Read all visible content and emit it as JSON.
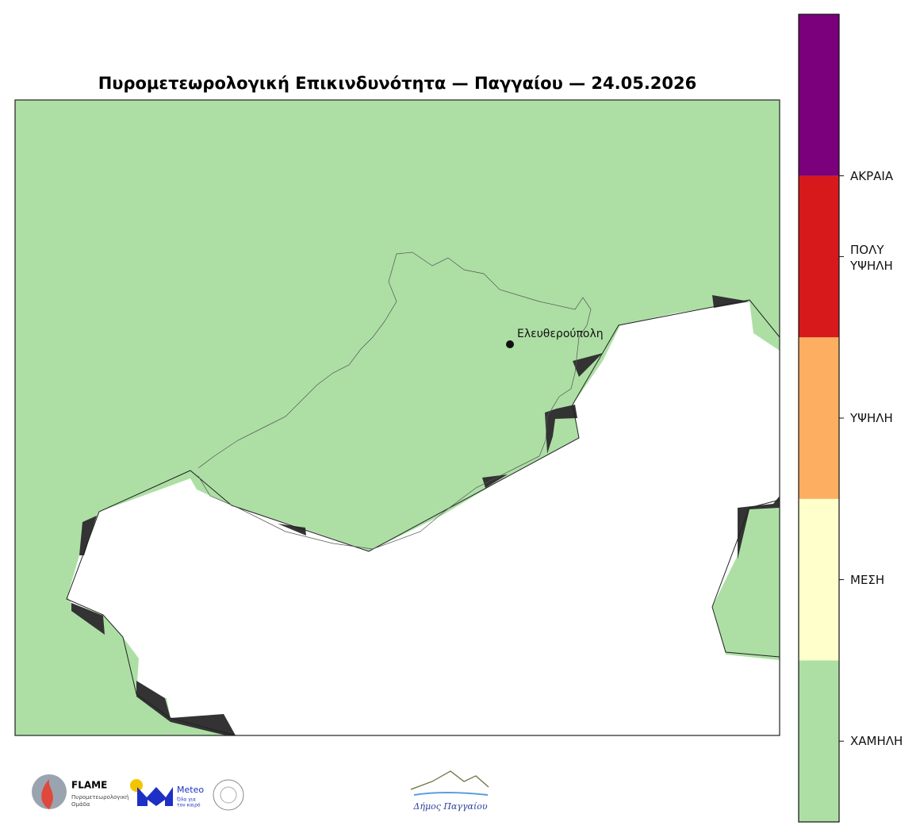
{
  "title": "Πυρομετεωρολογική Επικινδυνότητα — Παγγαίου — 24.05.2026",
  "city": {
    "name": "Ελευθερούπολη"
  },
  "colorbar": {
    "labels": [
      "ΧΑΜΗΛΗ",
      "ΜΕΣΗ",
      "ΥΨΗΛΗ",
      "ΠΟΛΥ ΥΨΗΛΗ",
      "ΑΚΡΑΙΑ"
    ],
    "colors": [
      "#addfa5",
      "#ffffcb",
      "#fdae61",
      "#d7191c",
      "#7b007b"
    ]
  },
  "logos": {
    "flame": "FLAME",
    "flame_sub1": "Πυρομετεωρολογική",
    "flame_sub2": "Ομάδα",
    "meteo": "Meteo",
    "meteo_sub1": "Όλα για",
    "meteo_sub2": "τον καιρό",
    "municipality": "Δήμος Παγγαίου"
  }
}
